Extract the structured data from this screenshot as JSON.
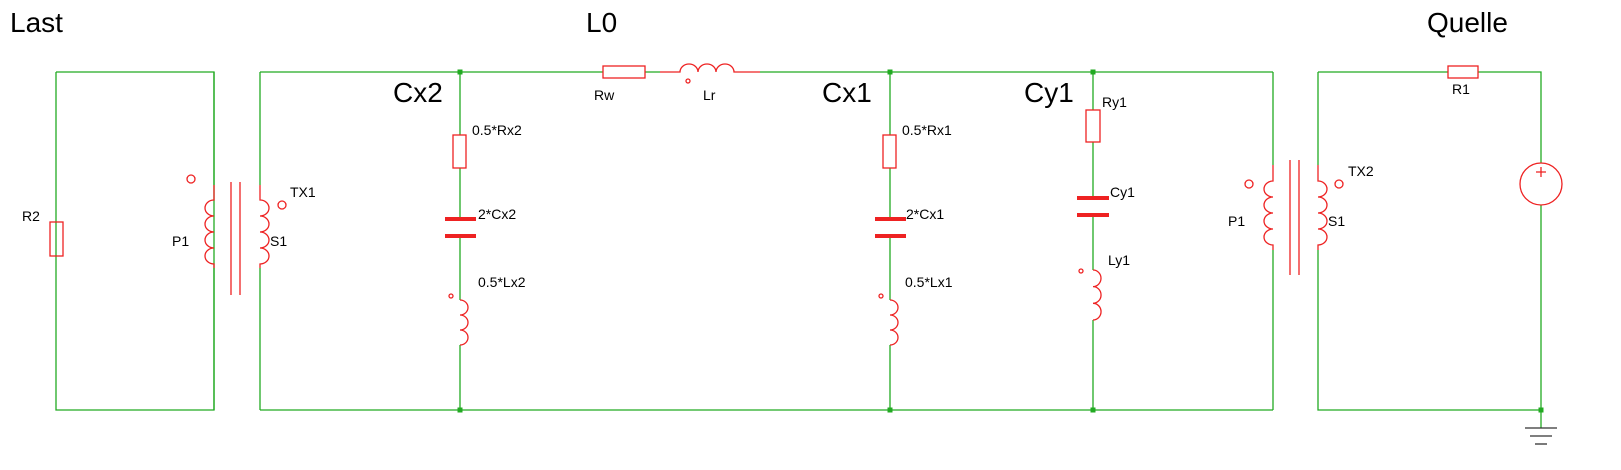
{
  "headings": {
    "last": "Last",
    "l0": "L0",
    "quelle": "Quelle"
  },
  "nodes": {
    "cx2": "Cx2",
    "cx1": "Cx1",
    "cy1": "Cy1"
  },
  "labels": {
    "r2": "R2",
    "tx1_p1": "P1",
    "tx1": "TX1",
    "tx1_s1": "S1",
    "rx2": "0.5*Rx2",
    "cx2cap": "2*Cx2",
    "lx2": "0.5*Lx2",
    "rw": "Rw",
    "lr": "Lr",
    "rx1": "0.5*Rx1",
    "cx1cap": "2*Cx1",
    "lx1": "0.5*Lx1",
    "ry1": "Ry1",
    "cy1cap": "Cy1",
    "ly1": "Ly1",
    "tx2_p1": "P1",
    "tx2": "TX2",
    "tx2_s1": "S1",
    "r1": "R1"
  },
  "colors": {
    "wire": "#22aa22",
    "component": "#ee2222",
    "text": "#000000",
    "junction": "#22aa22"
  }
}
